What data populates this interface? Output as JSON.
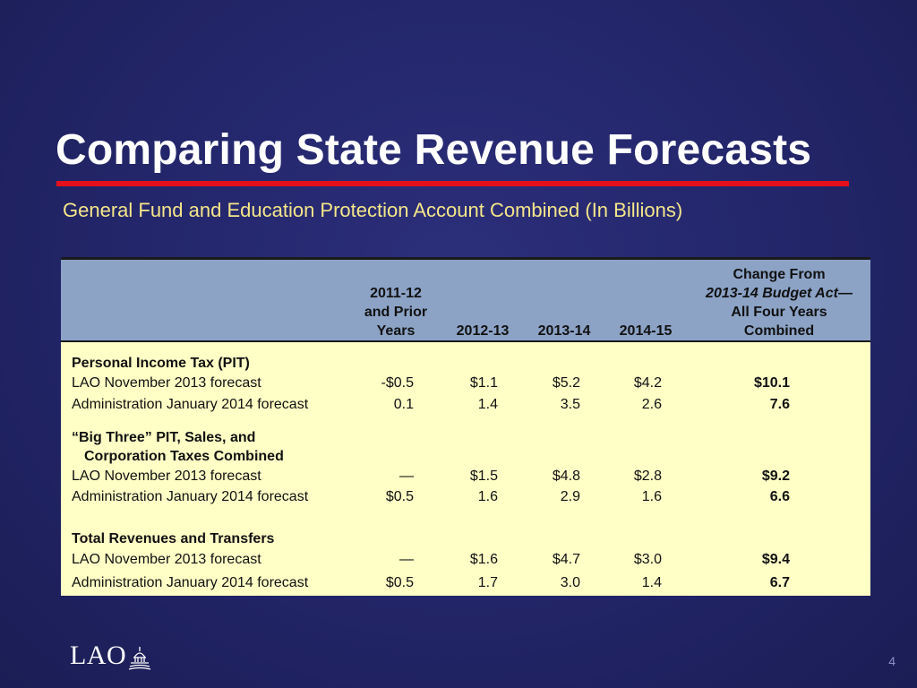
{
  "slide": {
    "title": "Comparing State Revenue Forecasts",
    "subtitle": "General Fund and Education Protection Account Combined (In Billions)",
    "page_number": "4",
    "logo_text": "LAO",
    "colors": {
      "background": "#24276c",
      "title_rule": "#e3101c",
      "subtitle": "#f5e68a",
      "table_header": "#8ca3c6",
      "table_body": "#ffffc6"
    }
  },
  "table": {
    "headers": {
      "col1": [
        "2011-12",
        "and Prior",
        "Years"
      ],
      "col2": "2012-13",
      "col3": "2013-14",
      "col4": "2014-15",
      "col5": {
        "line1": "Change From",
        "line2_italic": "2013-14 Budget Act",
        "line2_suffix": "—",
        "line3": "All Four Years",
        "line4": "Combined"
      }
    },
    "sections": [
      {
        "title": "Personal Income Tax (PIT)",
        "rows": [
          {
            "label": "LAO November 2013 forecast",
            "values": [
              "-$0.5",
              "$1.1",
              "$5.2",
              "$4.2",
              "$10.1"
            ]
          },
          {
            "label": "Administration January 2014 forecast",
            "values": [
              "0.1",
              "1.4",
              "3.5",
              "2.6",
              "7.6"
            ]
          }
        ]
      },
      {
        "title_line1": "“Big Three” PIT, Sales, and",
        "title_line2": "Corporation Taxes Combined",
        "rows": [
          {
            "label": "LAO November 2013 forecast",
            "values": [
              "—",
              "$1.5",
              "$4.8",
              "$2.8",
              "$9.2"
            ]
          },
          {
            "label": "Administration January 2014 forecast",
            "values": [
              "$0.5",
              "1.6",
              "2.9",
              "1.6",
              "6.6"
            ]
          }
        ]
      },
      {
        "title": "Total Revenues and Transfers",
        "rows": [
          {
            "label": "LAO November 2013 forecast",
            "values": [
              "—",
              "$1.6",
              "$4.7",
              "$3.0",
              "$9.4"
            ]
          },
          {
            "label": "Administration January 2014 forecast",
            "values": [
              "$0.5",
              "1.7",
              "3.0",
              "1.4",
              "6.7"
            ]
          }
        ]
      }
    ]
  }
}
